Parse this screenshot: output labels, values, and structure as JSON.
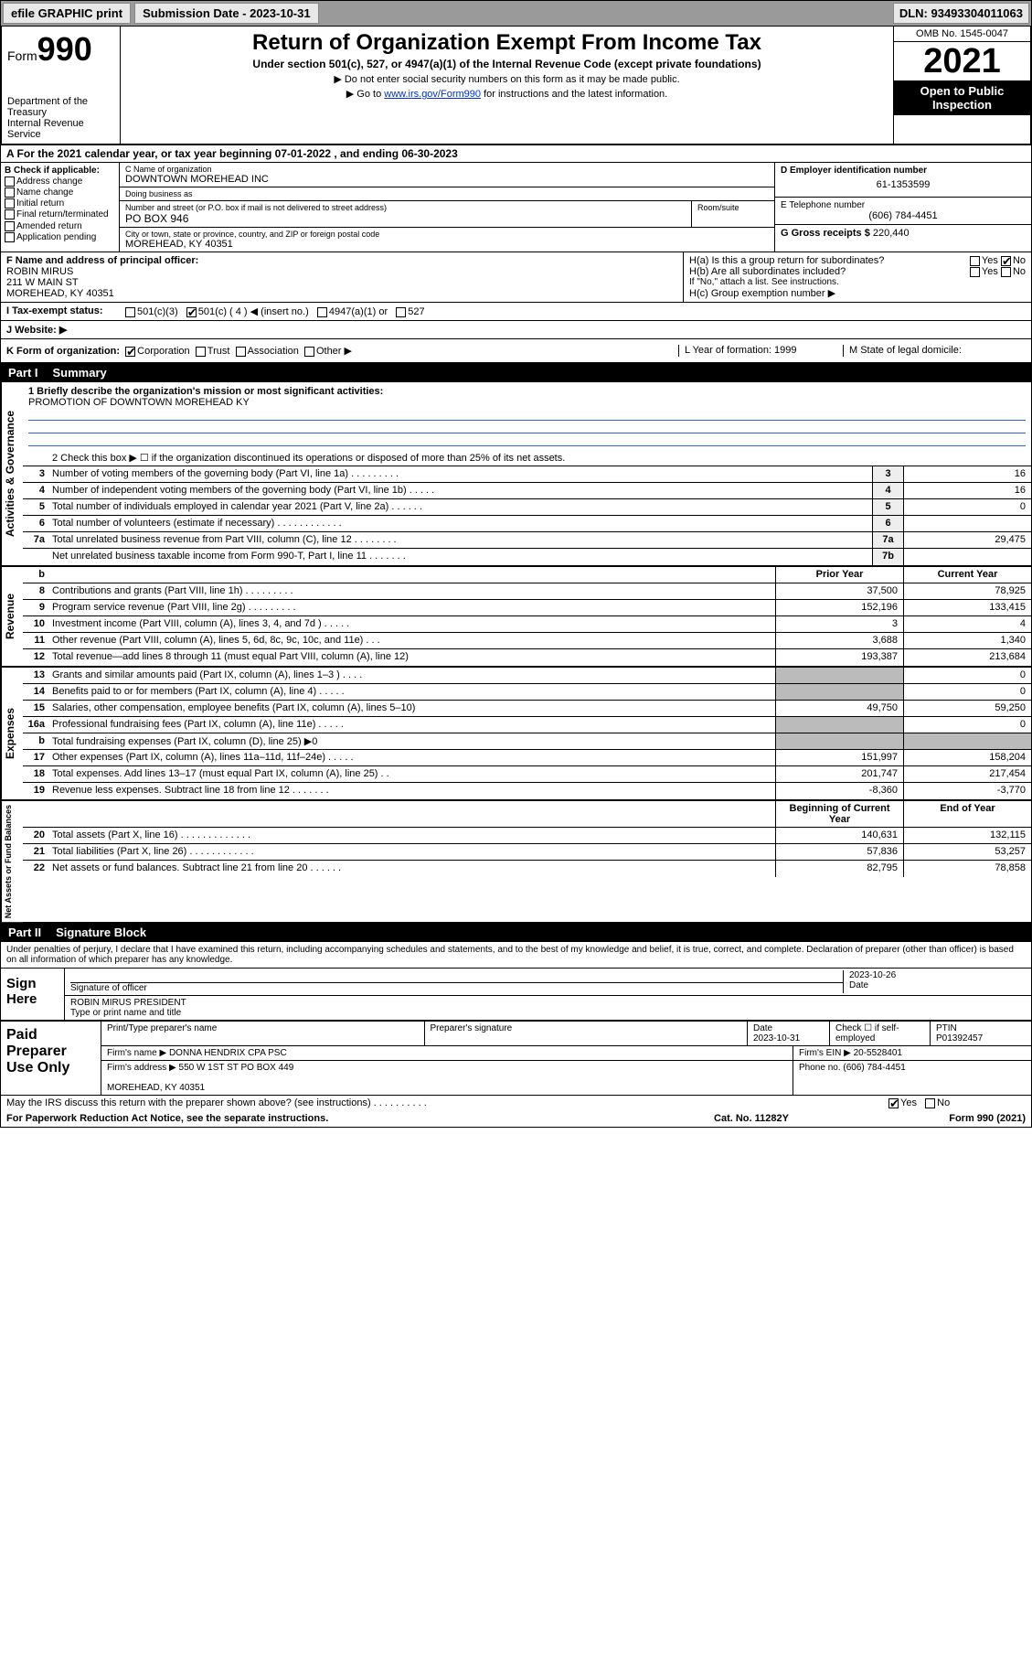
{
  "topbar": {
    "efile": "efile GRAPHIC print",
    "submission": "Submission Date - 2023-10-31",
    "dln": "DLN: 93493304011063"
  },
  "header": {
    "form_label": "Form",
    "form_num": "990",
    "title": "Return of Organization Exempt From Income Tax",
    "subtitle": "Under section 501(c), 527, or 4947(a)(1) of the Internal Revenue Code (except private foundations)",
    "note1": "▶ Do not enter social security numbers on this form as it may be made public.",
    "note2_pre": "▶ Go to ",
    "note2_link": "www.irs.gov/Form990",
    "note2_post": " for instructions and the latest information.",
    "dept": "Department of the Treasury\nInternal Revenue Service",
    "omb": "OMB No. 1545-0047",
    "year": "2021",
    "open": "Open to Public Inspection"
  },
  "rowA": "A For the 2021 calendar year, or tax year beginning 07-01-2022    , and ending 06-30-2023",
  "colB": {
    "title": "B Check if applicable:",
    "items": [
      "Address change",
      "Name change",
      "Initial return",
      "Final return/terminated",
      "Amended return",
      "Application pending"
    ]
  },
  "colC": {
    "name_lbl": "C Name of organization",
    "name": "DOWNTOWN MOREHEAD INC",
    "dba_lbl": "Doing business as",
    "dba": "",
    "addr_lbl": "Number and street (or P.O. box if mail is not delivered to street address)",
    "addr": "PO BOX 946",
    "room_lbl": "Room/suite",
    "city_lbl": "City or town, state or province, country, and ZIP or foreign postal code",
    "city": "MOREHEAD, KY  40351"
  },
  "colDEG": {
    "d_lbl": "D Employer identification number",
    "d_val": "61-1353599",
    "e_lbl": "E Telephone number",
    "e_val": "(606) 784-4451",
    "g_lbl": "G Gross receipts $",
    "g_val": "220,440"
  },
  "rowF": {
    "lbl": "F Name and address of principal officer:",
    "name": "ROBIN MIRUS",
    "addr1": "211 W MAIN ST",
    "addr2": "MOREHEAD, KY  40351"
  },
  "rowH": {
    "a": "H(a)  Is this a group return for subordinates?",
    "a_yes": "Yes",
    "a_no": "No",
    "b": "H(b)  Are all subordinates included?",
    "b_note": "If \"No,\" attach a list. See instructions.",
    "c": "H(c)  Group exemption number ▶"
  },
  "rowI": {
    "lbl": "I   Tax-exempt status:",
    "opts": [
      "501(c)(3)",
      "501(c) ( 4 ) ◀ (insert no.)",
      "4947(a)(1) or",
      "527"
    ]
  },
  "rowJ": {
    "lbl": "J   Website: ▶",
    "val": ""
  },
  "rowK": {
    "lbl": "K Form of organization:",
    "opts": [
      "Corporation",
      "Trust",
      "Association",
      "Other ▶"
    ],
    "L": "L Year of formation: 1999",
    "M": "M State of legal domicile:"
  },
  "part1": {
    "pt": "Part I",
    "title": "Summary"
  },
  "mission": {
    "lbl": "1   Briefly describe the organization's mission or most significant activities:",
    "val": "PROMOTION OF DOWNTOWN MOREHEAD KY"
  },
  "line2": "2    Check this box ▶ ☐  if the organization discontinued its operations or disposed of more than 25% of its net assets.",
  "governance_rows": [
    {
      "n": "3",
      "d": "Number of voting members of the governing body (Part VI, line 1a)   .    .    .    .    .    .    .    .    .",
      "box": "3",
      "v": "16"
    },
    {
      "n": "4",
      "d": "Number of independent voting members of the governing body (Part VI, line 1b)    .    .    .    .    .",
      "box": "4",
      "v": "16"
    },
    {
      "n": "5",
      "d": "Total number of individuals employed in calendar year 2021 (Part V, line 2a)    .    .    .    .    .    .",
      "box": "5",
      "v": "0"
    },
    {
      "n": "6",
      "d": "Total number of volunteers (estimate if necessary)    .    .    .    .    .    .    .    .    .    .    .    .",
      "box": "6",
      "v": ""
    },
    {
      "n": "7a",
      "d": "Total unrelated business revenue from Part VIII, column (C), line 12   .    .    .    .    .    .    .    .",
      "box": "7a",
      "v": "29,475"
    },
    {
      "n": "",
      "d": "Net unrelated business taxable income from Form 990-T, Part I, line 11   .    .    .    .    .    .    .",
      "box": "7b",
      "v": ""
    }
  ],
  "rev_hdr": {
    "py": "Prior Year",
    "cy": "Current Year"
  },
  "revenue_rows": [
    {
      "n": "8",
      "d": "Contributions and grants (Part VIII, line 1h)    .    .    .    .    .    .    .    .    .",
      "py": "37,500",
      "cy": "78,925"
    },
    {
      "n": "9",
      "d": "Program service revenue (Part VIII, line 2g)   .    .    .    .    .    .    .    .    .",
      "py": "152,196",
      "cy": "133,415"
    },
    {
      "n": "10",
      "d": "Investment income (Part VIII, column (A), lines 3, 4, and 7d )   .    .    .    .    .",
      "py": "3",
      "cy": "4"
    },
    {
      "n": "11",
      "d": "Other revenue (Part VIII, column (A), lines 5, 6d, 8c, 9c, 10c, and 11e)    .    .    .",
      "py": "3,688",
      "cy": "1,340"
    },
    {
      "n": "12",
      "d": "Total revenue—add lines 8 through 11 (must equal Part VIII, column (A), line 12)",
      "py": "193,387",
      "cy": "213,684"
    }
  ],
  "expense_rows": [
    {
      "n": "13",
      "d": "Grants and similar amounts paid (Part IX, column (A), lines 1–3 )   .    .    .    .",
      "py": "",
      "cy": "0",
      "shade": true
    },
    {
      "n": "14",
      "d": "Benefits paid to or for members (Part IX, column (A), line 4)   .    .    .    .    .",
      "py": "",
      "cy": "0",
      "shade": true
    },
    {
      "n": "15",
      "d": "Salaries, other compensation, employee benefits (Part IX, column (A), lines 5–10)",
      "py": "49,750",
      "cy": "59,250"
    },
    {
      "n": "16a",
      "d": "Professional fundraising fees (Part IX, column (A), line 11e)    .    .    .    .    .",
      "py": "",
      "cy": "0",
      "shade": true
    },
    {
      "n": "b",
      "d": "Total fundraising expenses (Part IX, column (D), line 25) ▶0",
      "py": "",
      "cy": "",
      "shade": true,
      "shadeCy": true
    },
    {
      "n": "17",
      "d": "Other expenses (Part IX, column (A), lines 11a–11d, 11f–24e)   .    .    .    .    .",
      "py": "151,997",
      "cy": "158,204"
    },
    {
      "n": "18",
      "d": "Total expenses. Add lines 13–17 (must equal Part IX, column (A), line 25)   .    .",
      "py": "201,747",
      "cy": "217,454"
    },
    {
      "n": "19",
      "d": "Revenue less expenses. Subtract line 18 from line 12   .    .    .    .    .    .    .",
      "py": "-8,360",
      "cy": "-3,770"
    }
  ],
  "net_hdr": {
    "py": "Beginning of Current Year",
    "cy": "End of Year"
  },
  "net_rows": [
    {
      "n": "20",
      "d": "Total assets (Part X, line 16)   .    .    .    .    .    .    .    .    .    .    .    .    .",
      "py": "140,631",
      "cy": "132,115"
    },
    {
      "n": "21",
      "d": "Total liabilities (Part X, line 26)    .    .    .    .    .    .    .    .    .    .    .    .",
      "py": "57,836",
      "cy": "53,257"
    },
    {
      "n": "22",
      "d": "Net assets or fund balances. Subtract line 21 from line 20   .    .    .    .    .    .",
      "py": "82,795",
      "cy": "78,858"
    }
  ],
  "sections": {
    "gov": "Activities & Governance",
    "rev": "Revenue",
    "exp": "Expenses",
    "net": "Net Assets or Fund Balances"
  },
  "part2": {
    "pt": "Part II",
    "title": "Signature Block"
  },
  "sig": {
    "decl": "Under penalties of perjury, I declare that I have examined this return, including accompanying schedules and statements, and to the best of my knowledge and belief, it is true, correct, and complete. Declaration of preparer (other than officer) is based on all information of which preparer has any knowledge.",
    "sign_here": "Sign Here",
    "sig_lbl": "Signature of officer",
    "date_lbl": "Date",
    "date": "2023-10-26",
    "name": "ROBIN MIRUS  PRESIDENT",
    "name_lbl": "Type or print name and title"
  },
  "prep": {
    "lbl": "Paid Preparer Use Only",
    "r1": {
      "c1": "Print/Type preparer's name",
      "c2": "Preparer's signature",
      "c3": "Date\n2023-10-31",
      "c4": "Check ☐ if self-employed",
      "c5": "PTIN\nP01392457"
    },
    "r2": {
      "c1": "Firm's name    ▶ DONNA HENDRIX CPA PSC",
      "c2": "Firm's EIN ▶ 20-5528401"
    },
    "r3": {
      "c1": "Firm's address ▶ 550 W 1ST ST PO BOX 449\n\nMOREHEAD, KY  40351",
      "c2": "Phone no. (606) 784-4451"
    }
  },
  "discuss": {
    "q": "May the IRS discuss this return with the preparer shown above? (see instructions)    .    .    .    .    .    .    .    .    .    .",
    "yes": "Yes",
    "no": "No"
  },
  "footer": {
    "l": "For Paperwork Reduction Act Notice, see the separate instructions.",
    "m": "Cat. No. 11282Y",
    "r": "Form 990 (2021)"
  }
}
